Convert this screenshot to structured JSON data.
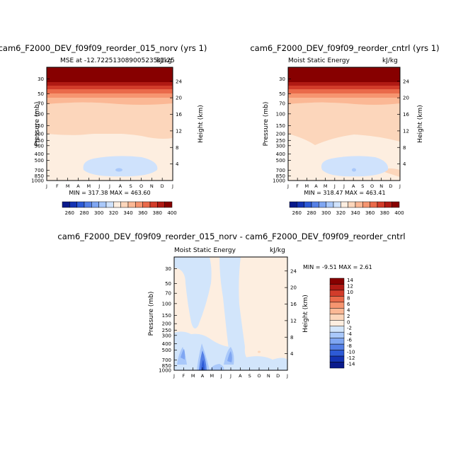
{
  "palette": {
    "mse": [
      "#0a1a8c",
      "#1433b3",
      "#2d5ad6",
      "#5580e6",
      "#7fa6f2",
      "#a9c8fa",
      "#cfe2fc",
      "#fdeee0",
      "#fcd6bb",
      "#fbb895",
      "#f69570",
      "#ea6a4a",
      "#d23c2a",
      "#b01a14",
      "#870000"
    ],
    "diff": [
      "#0a1a8c",
      "#1433b3",
      "#2d5ad6",
      "#5580e6",
      "#7fa6f2",
      "#a9c8fa",
      "#d2e5fb",
      "#fdeee0",
      "#fcd6bb",
      "#fbb895",
      "#f69570",
      "#ea6a4a",
      "#d23c2a",
      "#b01a14",
      "#870000"
    ]
  },
  "charts": [
    {
      "title": "cam6_F2000_DEV_f09f09_reorder_015_norv (yrs 1)",
      "left_label": "MSE at -12.722513089005235",
      "right_label": "kJ/kg",
      "overlap_label": "31.25",
      "ylabel": "Pressure (mb)",
      "ylabel_right": "Height (km)",
      "minmax": "MIN = 317.38 MAX = 463.60",
      "colorbar_labels": [
        "260",
        "280",
        "300",
        "320",
        "340",
        "360",
        "380",
        "400"
      ]
    },
    {
      "title": "cam6_F2000_DEV_f09f09_reorder_cntrl (yrs 1)",
      "left_label": "Moist Static Energy",
      "right_label": "kJ/kg",
      "ylabel": "Pressure (mb)",
      "ylabel_right": "Height (km)",
      "minmax": "MIN = 318.47 MAX = 463.41",
      "colorbar_labels": [
        "260",
        "280",
        "300",
        "320",
        "340",
        "360",
        "380",
        "400"
      ]
    },
    {
      "title": "cam6_F2000_DEV_f09f09_reorder_015_norv - cam6_F2000_DEV_f09f09_reorder_cntrl",
      "left_label": "Moist Static Energy",
      "right_label": "kJ/kg",
      "ylabel": "Pressure (mb)",
      "ylabel_right": "Height (km)",
      "minmax": "MIN = -9.51 MAX = 2.61",
      "colorbar_labels": [
        "14",
        "12",
        "10",
        "8",
        "6",
        "4",
        "2",
        "0",
        "-2",
        "-4",
        "-6",
        "-8",
        "-10",
        "-12",
        "-14"
      ]
    }
  ],
  "chart_data": [
    {
      "type": "heatmap",
      "title": "cam6_F2000_DEV_f09f09_reorder_015_norv (yrs 1)",
      "xlabel": "",
      "ylabel": "Pressure (mb)",
      "ylabel_right": "Height (km)",
      "x_ticks": [
        "J",
        "F",
        "M",
        "A",
        "M",
        "J",
        "J",
        "A",
        "S",
        "O",
        "N",
        "D",
        "J"
      ],
      "y_ticks": [
        "30",
        "50",
        "70",
        "100",
        "150",
        "200",
        "250",
        "300",
        "400",
        "500",
        "700",
        "850",
        "1000"
      ],
      "y_ticks_right": [
        "24",
        "20",
        "16",
        "12",
        "8",
        "4"
      ],
      "ylim": [
        1000,
        20
      ],
      "y_scale": "log",
      "levels": [
        260,
        270,
        280,
        290,
        300,
        310,
        320,
        330,
        340,
        350,
        360,
        370,
        380,
        390,
        400
      ],
      "min": 317.38,
      "max": 463.6
    },
    {
      "type": "heatmap",
      "title": "cam6_F2000_DEV_f09f09_reorder_cntrl (yrs 1)",
      "xlabel": "",
      "ylabel": "Pressure (mb)",
      "ylabel_right": "Height (km)",
      "x_ticks": [
        "J",
        "F",
        "M",
        "A",
        "M",
        "J",
        "J",
        "A",
        "S",
        "O",
        "N",
        "D",
        "J"
      ],
      "y_ticks": [
        "30",
        "50",
        "70",
        "100",
        "150",
        "200",
        "250",
        "300",
        "400",
        "500",
        "700",
        "850",
        "1000"
      ],
      "y_ticks_right": [
        "24",
        "20",
        "16",
        "12",
        "8",
        "4"
      ],
      "ylim": [
        1000,
        20
      ],
      "y_scale": "log",
      "levels": [
        260,
        270,
        280,
        290,
        300,
        310,
        320,
        330,
        340,
        350,
        360,
        370,
        380,
        390,
        400
      ],
      "min": 318.47,
      "max": 463.41
    },
    {
      "type": "heatmap",
      "title": "cam6_F2000_DEV_f09f09_reorder_015_norv - cam6_F2000_DEV_f09f09_reorder_cntrl",
      "xlabel": "",
      "ylabel": "Pressure (mb)",
      "ylabel_right": "Height (km)",
      "x_ticks": [
        "J",
        "F",
        "M",
        "A",
        "M",
        "J",
        "J",
        "A",
        "S",
        "O",
        "N",
        "D",
        "J"
      ],
      "y_ticks": [
        "30",
        "50",
        "70",
        "100",
        "150",
        "200",
        "250",
        "300",
        "400",
        "500",
        "700",
        "850",
        "1000"
      ],
      "y_ticks_right": [
        "24",
        "20",
        "16",
        "12",
        "8",
        "4"
      ],
      "ylim": [
        1000,
        20
      ],
      "y_scale": "log",
      "levels": [
        -14,
        -12,
        -10,
        -8,
        -6,
        -4,
        -2,
        0,
        2,
        4,
        6,
        8,
        10,
        12,
        14
      ],
      "min": -9.51,
      "max": 2.61
    }
  ]
}
